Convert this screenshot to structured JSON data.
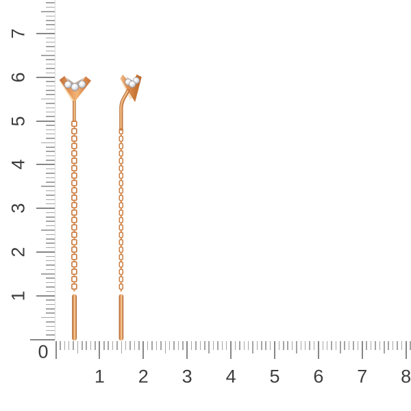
{
  "rulers": {
    "corner_label": "0",
    "vertical": {
      "labels": [
        "1",
        "2",
        "3",
        "4",
        "5",
        "6",
        "7"
      ]
    },
    "horizontal": {
      "labels": [
        "1",
        "2",
        "3",
        "4",
        "5",
        "6",
        "7",
        "8"
      ]
    }
  },
  "colors": {
    "background": "#ffffff",
    "tick_minor": "#a4a4a4",
    "tick_major": "#868686",
    "ruler_edge": "#dcdcdc",
    "label_text": "#3d3d3d",
    "gold_dark": "#9e5c2c",
    "gold_deep": "#bf7039",
    "gold_mid": "#e0915a",
    "gold_highlight": "#f2b577",
    "gold_light": "#f9d7a8",
    "diamond_highlight": "#ffffff",
    "diamond_mid": "#c3c4cb",
    "diamond_dark": "#96969e"
  },
  "scene": {
    "items": [
      {
        "id": "earring-left",
        "view": "front"
      },
      {
        "id": "earring-right",
        "view": "profile"
      }
    ]
  }
}
